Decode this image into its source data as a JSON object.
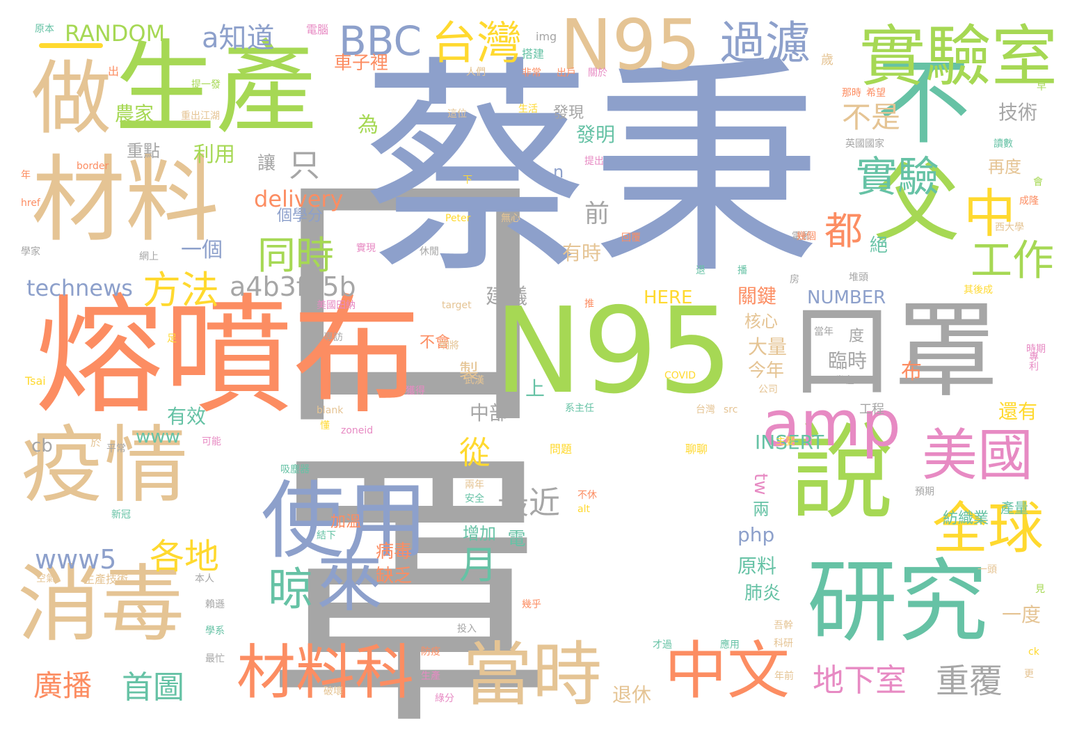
{
  "colors": {
    "background": "#ffffff",
    "gray": "#a6a6a6",
    "blue": "#8da0cb",
    "green": "#a6d854",
    "teal": "#66c2a5",
    "orange": "#fc8d62",
    "pink": "#e78ac3",
    "yellow": "#ffd92f",
    "tan": "#e5c494"
  },
  "words": [
    "口罩",
    "蔡秉",
    "熔噴布",
    "N95",
    "口罩",
    "生產",
    "材料",
    "不",
    "做",
    "父",
    "實驗室",
    "N95",
    "疫情",
    "說",
    "消毒",
    "研究",
    "使用",
    "來",
    "晾",
    "美國",
    "amp",
    "當時",
    "材料科",
    "中文",
    "全球",
    "台灣",
    "過濾",
    "BBC",
    "實驗",
    "中",
    "只",
    "都",
    "工作",
    "同時",
    "方法",
    "a4b3f35b",
    "technews",
    "a知道",
    "RANDOM",
    "最近",
    "月",
    "各地",
    "www5",
    "首圖",
    "廣播",
    "從",
    "地下室",
    "重覆",
    "不是",
    "技術",
    "前",
    "一個",
    "利用",
    "重點",
    "農家",
    "發明",
    "發現",
    "讓",
    "為",
    "車子裡",
    "delivery",
    "個學分",
    "有時",
    "建議",
    "關鍵",
    "核心",
    "大量",
    "今年",
    "臨時",
    "布",
    "還有",
    "HERE",
    "NUMBER",
    "INSERT",
    "www",
    "有效",
    "cb",
    "中部",
    "上",
    "製",
    "tw",
    "php",
    "兩",
    "原料",
    "肺炎",
    "病毒",
    "缺乏",
    "加溫",
    "增加",
    "電",
    "一度",
    "退休",
    "紡織業",
    "產量",
    "再度",
    "絕",
    "n",
    "不會",
    "度",
    "歲",
    "img",
    "電腦",
    "原本",
    "出",
    "搭建",
    "非常",
    "出戶",
    "關於",
    "人們",
    "提一發",
    "重出江湖",
    "這位",
    "生活",
    "border",
    "年",
    "href",
    "學家",
    "網上",
    "實現",
    "休閒",
    "Peter",
    "無心",
    "下",
    "提出",
    "target",
    "美國田納",
    "足",
    "Tsai",
    "明將",
    "專訪",
    "當年",
    "坐在",
    "COVID",
    "公司",
    "台灣",
    "src",
    "工程",
    "blank",
    "zoneid",
    "系主任",
    "可能",
    "平常",
    "於",
    "問題",
    "聊聊",
    "主要",
    "吸塵器",
    "avw",
    "兩年",
    "安全",
    "不休",
    "alt",
    "結下",
    "預期",
    "新冠",
    "空氣",
    "生產技術",
    "本人",
    "賴遜",
    "學系",
    "最忙",
    "投入",
    "幾乎",
    "防疫",
    "生產",
    "破壞",
    "綠分",
    "年前",
    "才過",
    "應用",
    "吾幹",
    "科研",
    "一頭",
    "ck",
    "更",
    "見",
    "回覆",
    "英國國家",
    "讀數",
    "會",
    "成隆",
    "西大學",
    "電郵",
    "其後成",
    "時期",
    "專利",
    "幾個",
    "推",
    "退",
    "播",
    "堆頭",
    "房",
    "那時",
    "希望",
    "早",
    "獲得",
    "武漢",
    "懂"
  ]
}
